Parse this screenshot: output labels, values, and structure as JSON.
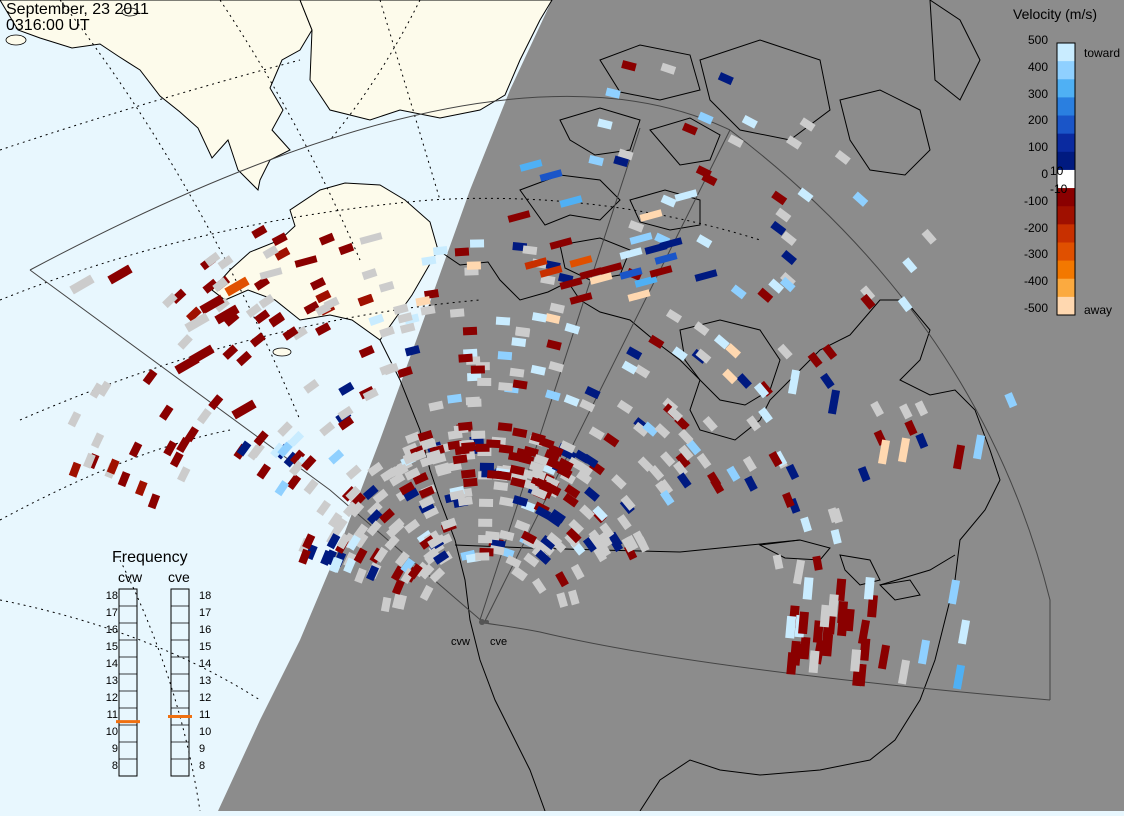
{
  "header": {
    "date": "September, 23 2011",
    "time": "0316:00 UT"
  },
  "colorbar": {
    "title": "Velocity (m/s)",
    "ticks": [
      "500",
      "400",
      "300",
      "200",
      "100",
      "0",
      "-100",
      "-200",
      "-300",
      "-400",
      "-500"
    ],
    "inner_ticks": [
      "10",
      "-10"
    ],
    "toward_label": "toward",
    "away_label": "away",
    "scale_colors": [
      "#c9ecff",
      "#8fd0ff",
      "#4fb0f4",
      "#2a7fe0",
      "#1a55c8",
      "#0a2aa0",
      "#001a80",
      "#ffffff",
      "#8a0000",
      "#a01000",
      "#c83000",
      "#e05000",
      "#f37800",
      "#fbaa40",
      "#ffd8b0"
    ]
  },
  "frequency": {
    "title": "Frequency",
    "radars": [
      {
        "name": "cvw",
        "freq_mhz": 10.7
      },
      {
        "name": "cve",
        "freq_mhz": 11.0
      }
    ],
    "ticks": [
      "18",
      "17",
      "16",
      "15",
      "14",
      "13",
      "12",
      "11",
      "10",
      "9",
      "8"
    ]
  },
  "radar_sites": [
    {
      "name": "cvw"
    },
    {
      "name": "cve"
    }
  ],
  "map_colors": {
    "ocean_day": "#e8f7fe",
    "land_day": "#fdfbeb",
    "night": "#8c8c8c",
    "gray_scatter": "#cccccc",
    "marker": "#f07010"
  }
}
